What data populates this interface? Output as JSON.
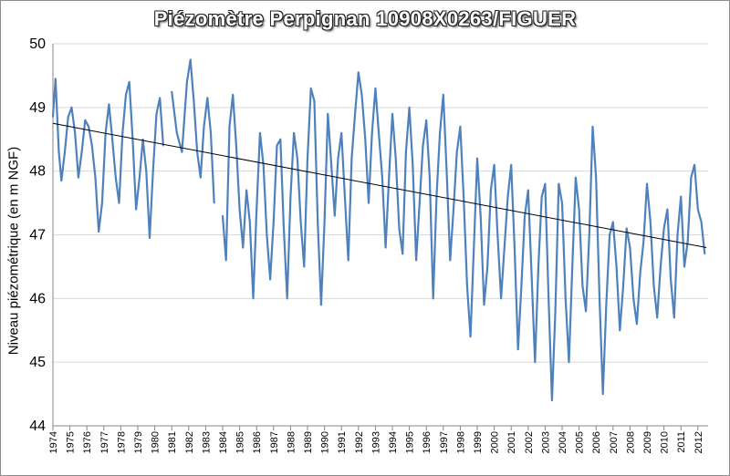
{
  "chart_data": {
    "type": "line",
    "title": "Piézomètre Perpignan 10908X0263/FIGUER",
    "ylabel": "Niveau piézométrique (en m NGF)",
    "xlabel": "",
    "ylim": [
      44,
      50
    ],
    "yticks": [
      44,
      45,
      46,
      47,
      48,
      49,
      50
    ],
    "xlim": [
      1974,
      2012.6
    ],
    "xticks": [
      "1974",
      "1975",
      "1976",
      "1977",
      "1978",
      "1979",
      "1980",
      "1981",
      "1982",
      "1983",
      "1984",
      "1985",
      "1986",
      "1987",
      "1988",
      "1989",
      "1990",
      "1991",
      "1992",
      "1993",
      "1994",
      "1995",
      "1996",
      "1997",
      "1998",
      "1999",
      "2000",
      "2001",
      "2002",
      "2003",
      "2004",
      "2005",
      "2006",
      "2007",
      "2008",
      "2009",
      "2010",
      "2011",
      "2012"
    ],
    "grid": "horizontal",
    "legend": "none",
    "colors": {
      "series": "#4f81bd",
      "trend": "#000000",
      "grid": "#d9d9d9",
      "axis": "#868686"
    },
    "series": [
      {
        "values": [
          [
            1974.0,
            48.85
          ],
          [
            1974.15,
            49.45
          ],
          [
            1974.35,
            48.3
          ],
          [
            1974.5,
            47.85
          ],
          [
            1974.7,
            48.3
          ],
          [
            1974.9,
            48.85
          ],
          [
            1975.1,
            49.0
          ],
          [
            1975.3,
            48.6
          ],
          [
            1975.5,
            47.9
          ],
          [
            1975.7,
            48.3
          ],
          [
            1975.9,
            48.8
          ],
          [
            1976.1,
            48.7
          ],
          [
            1976.3,
            48.4
          ],
          [
            1976.5,
            47.9
          ],
          [
            1976.7,
            47.05
          ],
          [
            1976.9,
            47.5
          ],
          [
            1977.1,
            48.6
          ],
          [
            1977.3,
            49.05
          ],
          [
            1977.5,
            48.5
          ],
          [
            1977.7,
            47.9
          ],
          [
            1977.9,
            47.5
          ],
          [
            1978.1,
            48.6
          ],
          [
            1978.3,
            49.2
          ],
          [
            1978.5,
            49.4
          ],
          [
            1978.7,
            48.5
          ],
          [
            1978.9,
            47.4
          ],
          [
            1979.1,
            47.9
          ],
          [
            1979.3,
            48.5
          ],
          [
            1979.5,
            48.0
          ],
          [
            1979.7,
            46.95
          ],
          [
            1979.9,
            48.0
          ],
          [
            1980.1,
            48.9
          ],
          [
            1980.3,
            49.15
          ],
          [
            1980.5,
            48.4
          ],
          [
            1981.0,
            49.25
          ],
          [
            1981.3,
            48.6
          ],
          [
            1981.6,
            48.3
          ],
          [
            1981.9,
            49.4
          ],
          [
            1982.1,
            49.75
          ],
          [
            1982.3,
            49.1
          ],
          [
            1982.5,
            48.3
          ],
          [
            1982.7,
            47.9
          ],
          [
            1982.9,
            48.7
          ],
          [
            1983.1,
            49.15
          ],
          [
            1983.3,
            48.6
          ],
          [
            1983.5,
            47.5
          ],
          [
            1984.0,
            47.3
          ],
          [
            1984.2,
            46.6
          ],
          [
            1984.4,
            48.7
          ],
          [
            1984.6,
            49.2
          ],
          [
            1984.8,
            48.4
          ],
          [
            1985.0,
            47.4
          ],
          [
            1985.2,
            46.8
          ],
          [
            1985.4,
            47.7
          ],
          [
            1985.6,
            47.2
          ],
          [
            1985.8,
            46.0
          ],
          [
            1986.0,
            47.4
          ],
          [
            1986.2,
            48.6
          ],
          [
            1986.4,
            48.1
          ],
          [
            1986.6,
            47.0
          ],
          [
            1986.8,
            46.3
          ],
          [
            1987.0,
            47.2
          ],
          [
            1987.2,
            48.4
          ],
          [
            1987.4,
            48.5
          ],
          [
            1987.6,
            47.1
          ],
          [
            1987.8,
            46.0
          ],
          [
            1988.0,
            47.6
          ],
          [
            1988.2,
            48.6
          ],
          [
            1988.4,
            48.2
          ],
          [
            1988.6,
            47.2
          ],
          [
            1988.8,
            46.5
          ],
          [
            1989.0,
            48.2
          ],
          [
            1989.2,
            49.3
          ],
          [
            1989.4,
            49.1
          ],
          [
            1989.6,
            47.2
          ],
          [
            1989.8,
            45.9
          ],
          [
            1990.0,
            47.2
          ],
          [
            1990.2,
            48.9
          ],
          [
            1990.4,
            48.1
          ],
          [
            1990.6,
            47.3
          ],
          [
            1990.8,
            48.2
          ],
          [
            1991.0,
            48.6
          ],
          [
            1991.2,
            47.6
          ],
          [
            1991.4,
            46.6
          ],
          [
            1991.6,
            48.2
          ],
          [
            1991.8,
            48.9
          ],
          [
            1992.0,
            49.55
          ],
          [
            1992.2,
            49.2
          ],
          [
            1992.4,
            48.5
          ],
          [
            1992.6,
            47.5
          ],
          [
            1992.8,
            48.6
          ],
          [
            1993.0,
            49.3
          ],
          [
            1993.2,
            48.6
          ],
          [
            1993.4,
            47.9
          ],
          [
            1993.6,
            46.8
          ],
          [
            1993.8,
            47.9
          ],
          [
            1994.0,
            48.9
          ],
          [
            1994.2,
            48.2
          ],
          [
            1994.4,
            47.1
          ],
          [
            1994.6,
            46.7
          ],
          [
            1994.8,
            48.3
          ],
          [
            1995.0,
            49.0
          ],
          [
            1995.2,
            48.1
          ],
          [
            1995.4,
            46.6
          ],
          [
            1995.6,
            47.5
          ],
          [
            1995.8,
            48.4
          ],
          [
            1996.0,
            48.8
          ],
          [
            1996.2,
            47.9
          ],
          [
            1996.4,
            46.0
          ],
          [
            1996.6,
            47.6
          ],
          [
            1996.8,
            48.6
          ],
          [
            1997.0,
            49.2
          ],
          [
            1997.2,
            48.0
          ],
          [
            1997.4,
            46.6
          ],
          [
            1997.6,
            47.4
          ],
          [
            1997.8,
            48.3
          ],
          [
            1998.0,
            48.7
          ],
          [
            1998.2,
            47.6
          ],
          [
            1998.4,
            46.2
          ],
          [
            1998.6,
            45.4
          ],
          [
            1998.8,
            46.8
          ],
          [
            1999.0,
            48.2
          ],
          [
            1999.2,
            47.3
          ],
          [
            1999.4,
            45.9
          ],
          [
            1999.6,
            46.5
          ],
          [
            1999.8,
            47.7
          ],
          [
            2000.0,
            48.1
          ],
          [
            2000.2,
            47.0
          ],
          [
            2000.4,
            46.0
          ],
          [
            2000.6,
            46.8
          ],
          [
            2000.8,
            47.6
          ],
          [
            2001.0,
            48.1
          ],
          [
            2001.2,
            46.8
          ],
          [
            2001.4,
            45.2
          ],
          [
            2001.6,
            46.2
          ],
          [
            2001.8,
            47.3
          ],
          [
            2002.0,
            47.7
          ],
          [
            2002.2,
            46.4
          ],
          [
            2002.4,
            45.0
          ],
          [
            2002.6,
            46.5
          ],
          [
            2002.8,
            47.6
          ],
          [
            2003.0,
            47.8
          ],
          [
            2003.2,
            46.0
          ],
          [
            2003.4,
            44.4
          ],
          [
            2003.6,
            45.8
          ],
          [
            2003.8,
            47.8
          ],
          [
            2004.0,
            47.5
          ],
          [
            2004.2,
            46.0
          ],
          [
            2004.4,
            45.0
          ],
          [
            2004.6,
            46.5
          ],
          [
            2004.8,
            47.9
          ],
          [
            2005.0,
            47.4
          ],
          [
            2005.2,
            46.2
          ],
          [
            2005.4,
            45.8
          ],
          [
            2005.6,
            47.0
          ],
          [
            2005.8,
            48.7
          ],
          [
            2006.0,
            47.9
          ],
          [
            2006.2,
            46.0
          ],
          [
            2006.4,
            44.5
          ],
          [
            2006.6,
            45.9
          ],
          [
            2006.8,
            47.0
          ],
          [
            2007.0,
            47.2
          ],
          [
            2007.2,
            46.5
          ],
          [
            2007.4,
            45.5
          ],
          [
            2007.6,
            46.2
          ],
          [
            2007.8,
            47.1
          ],
          [
            2008.0,
            46.8
          ],
          [
            2008.2,
            46.0
          ],
          [
            2008.4,
            45.6
          ],
          [
            2008.6,
            46.4
          ],
          [
            2008.8,
            46.9
          ],
          [
            2009.0,
            47.8
          ],
          [
            2009.2,
            47.2
          ],
          [
            2009.4,
            46.2
          ],
          [
            2009.6,
            45.7
          ],
          [
            2009.8,
            46.5
          ],
          [
            2010.0,
            47.1
          ],
          [
            2010.2,
            47.4
          ],
          [
            2010.4,
            46.3
          ],
          [
            2010.6,
            45.7
          ],
          [
            2010.8,
            47.0
          ],
          [
            2011.0,
            47.6
          ],
          [
            2011.2,
            46.5
          ],
          [
            2011.4,
            46.9
          ],
          [
            2011.6,
            47.9
          ],
          [
            2011.8,
            48.1
          ],
          [
            2012.0,
            47.4
          ],
          [
            2012.2,
            47.2
          ],
          [
            2012.4,
            46.7
          ]
        ]
      }
    ],
    "trendline": {
      "x": [
        1974.0,
        2012.5
      ],
      "y": [
        48.75,
        46.8
      ]
    }
  }
}
